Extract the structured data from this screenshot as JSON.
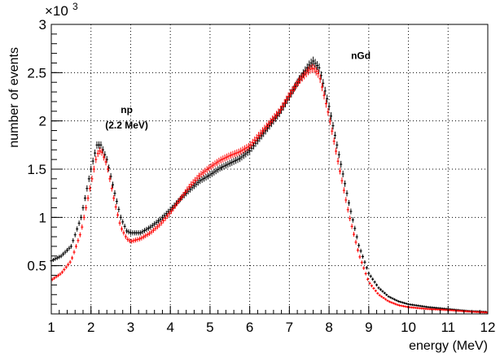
{
  "chart_data": {
    "type": "scatter",
    "title": "",
    "xlabel": "energy (MeV)",
    "ylabel": "number of events",
    "y_multiplier_base": "×10",
    "y_multiplier_exp": "3",
    "xlim": [
      1,
      12
    ],
    "ylim": [
      0,
      3000
    ],
    "grid": true,
    "x_ticks": [
      "1",
      "2",
      "3",
      "4",
      "5",
      "6",
      "7",
      "8",
      "9",
      "10",
      "11",
      "12"
    ],
    "y_ticks": [
      "0.5",
      "1",
      "1.5",
      "2",
      "2.5",
      "3"
    ],
    "y_tick_values": [
      500,
      1000,
      1500,
      2000,
      2500,
      3000
    ],
    "annotations": [
      {
        "text": "np",
        "x": 2.9,
        "y": 2080
      },
      {
        "text": "(2.2 MeV)",
        "x": 2.9,
        "y": 1920
      },
      {
        "text": "nGd",
        "x": 8.8,
        "y": 2640
      }
    ],
    "series": [
      {
        "color": "#000000",
        "x": [
          1.0,
          1.25,
          1.5,
          1.75,
          2.0,
          2.15,
          2.25,
          2.4,
          2.6,
          2.75,
          2.9,
          3.0,
          3.25,
          3.5,
          3.75,
          4.0,
          4.25,
          4.5,
          4.75,
          5.0,
          5.25,
          5.5,
          5.75,
          6.0,
          6.25,
          6.5,
          6.75,
          7.0,
          7.25,
          7.5,
          7.6,
          7.75,
          8.0,
          8.25,
          8.5,
          8.75,
          9.0,
          9.25,
          9.5,
          9.75,
          10.0,
          10.5,
          11.0,
          11.5,
          12.0
        ],
        "y": [
          550,
          600,
          700,
          1000,
          1500,
          1750,
          1750,
          1600,
          1250,
          1000,
          860,
          840,
          840,
          900,
          980,
          1080,
          1190,
          1290,
          1380,
          1440,
          1510,
          1560,
          1610,
          1690,
          1820,
          1950,
          2080,
          2250,
          2430,
          2580,
          2620,
          2550,
          2150,
          1650,
          1150,
          710,
          420,
          270,
          180,
          130,
          100,
          70,
          50,
          30,
          20
        ],
        "yerr": 40
      },
      {
        "color": "#ff0000",
        "x": [
          1.0,
          1.25,
          1.5,
          1.75,
          2.0,
          2.15,
          2.25,
          2.4,
          2.6,
          2.75,
          2.9,
          3.0,
          3.25,
          3.5,
          3.75,
          4.0,
          4.25,
          4.5,
          4.75,
          5.0,
          5.25,
          5.5,
          5.75,
          6.0,
          6.25,
          6.5,
          6.75,
          7.0,
          7.25,
          7.5,
          7.6,
          7.75,
          8.0,
          8.25,
          8.5,
          8.75,
          9.0,
          9.25,
          9.5,
          9.75,
          10.0,
          10.5,
          11.0,
          11.5,
          12.0
        ],
        "y": [
          350,
          420,
          550,
          850,
          1350,
          1650,
          1700,
          1550,
          1150,
          900,
          780,
          750,
          780,
          840,
          930,
          1050,
          1190,
          1330,
          1440,
          1520,
          1590,
          1640,
          1680,
          1740,
          1860,
          1980,
          2100,
          2270,
          2420,
          2530,
          2550,
          2480,
          2050,
          1530,
          1030,
          620,
          330,
          200,
          130,
          90,
          70,
          50,
          40,
          25,
          15
        ],
        "yerr": 40
      }
    ]
  }
}
